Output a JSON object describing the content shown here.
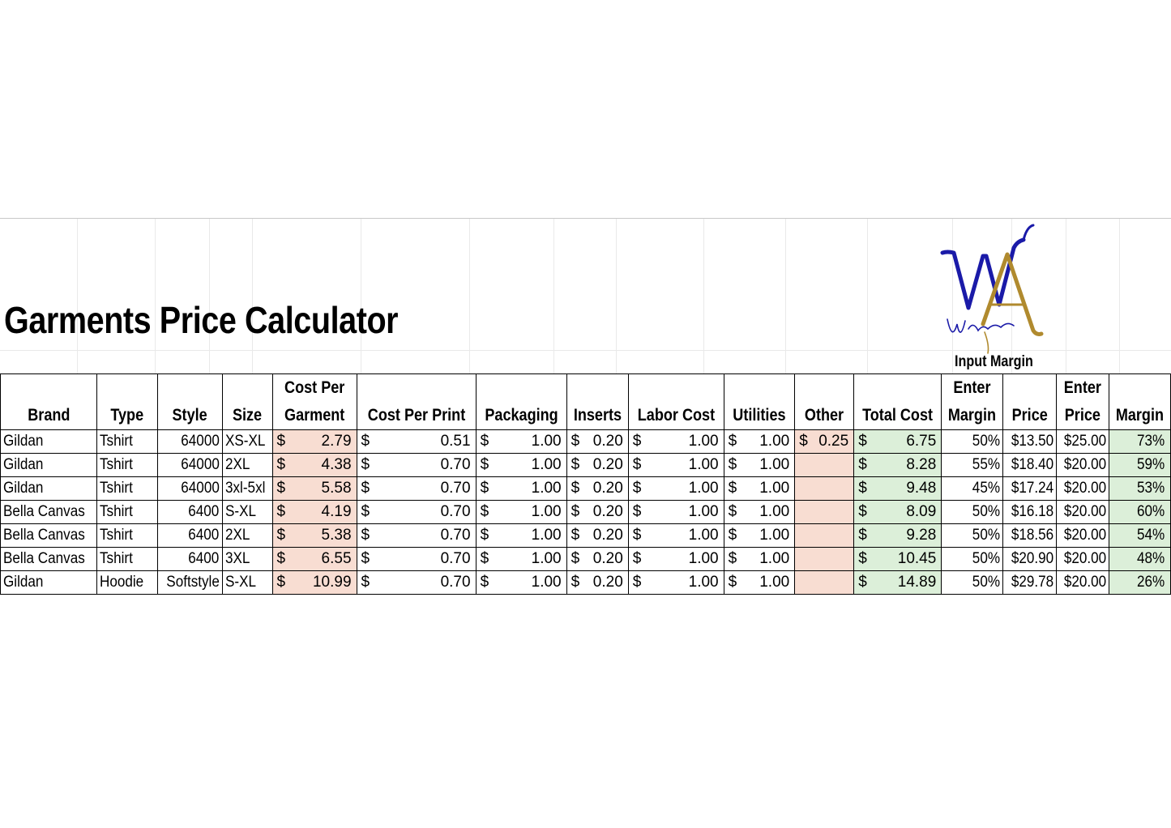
{
  "title": "Garments Price Calculator",
  "logo": {
    "monogram": "WA",
    "script": "Wintree Apparel",
    "colors": {
      "w": "#1a1aa8",
      "a": "#b08a2e"
    }
  },
  "input_margin_label": "Input Margin",
  "headers": {
    "brand": "Brand",
    "type": "Type",
    "style": "Style",
    "size": "Size",
    "cost_per_garment_1": "Cost Per",
    "cost_per_garment_2": "Garment",
    "cost_per_print": "Cost Per Print",
    "packaging": "Packaging",
    "inserts": "Inserts",
    "labor_cost": "Labor Cost",
    "utilities": "Utilities",
    "other": "Other",
    "total_cost": "Total Cost",
    "enter_margin_1": "Enter",
    "enter_margin_2": "Margin",
    "price": "Price",
    "enter_price_1": "Enter",
    "enter_price_2": "Price",
    "margin": "Margin"
  },
  "currency_symbol": "$",
  "colors": {
    "cost_fill": "#f8ddd2",
    "total_fill": "#dcefd9"
  },
  "rows": [
    {
      "brand": "Gildan",
      "type": "Tshirt",
      "style": "64000",
      "size": "XS-XL",
      "garment": "2.79",
      "print": "0.51",
      "packaging": "1.00",
      "inserts": "0.20",
      "labor": "1.00",
      "utilities": "1.00",
      "other": "0.25",
      "total": "6.75",
      "enter_margin": "50%",
      "price": "$13.50",
      "enter_price": "$25.00",
      "margin": "73%"
    },
    {
      "brand": "Gildan",
      "type": "Tshirt",
      "style": "64000",
      "size": "2XL",
      "garment": "4.38",
      "print": "0.70",
      "packaging": "1.00",
      "inserts": "0.20",
      "labor": "1.00",
      "utilities": "1.00",
      "other": "",
      "total": "8.28",
      "enter_margin": "55%",
      "price": "$18.40",
      "enter_price": "$20.00",
      "margin": "59%"
    },
    {
      "brand": "Gildan",
      "type": "Tshirt",
      "style": "64000",
      "size": "3xl-5xl",
      "garment": "5.58",
      "print": "0.70",
      "packaging": "1.00",
      "inserts": "0.20",
      "labor": "1.00",
      "utilities": "1.00",
      "other": "",
      "total": "9.48",
      "enter_margin": "45%",
      "price": "$17.24",
      "enter_price": "$20.00",
      "margin": "53%"
    },
    {
      "brand": "Bella Canvas",
      "type": "Tshirt",
      "style": "6400",
      "size": "S-XL",
      "garment": "4.19",
      "print": "0.70",
      "packaging": "1.00",
      "inserts": "0.20",
      "labor": "1.00",
      "utilities": "1.00",
      "other": "",
      "total": "8.09",
      "enter_margin": "50%",
      "price": "$16.18",
      "enter_price": "$20.00",
      "margin": "60%"
    },
    {
      "brand": "Bella Canvas",
      "type": "Tshirt",
      "style": "6400",
      "size": "2XL",
      "garment": "5.38",
      "print": "0.70",
      "packaging": "1.00",
      "inserts": "0.20",
      "labor": "1.00",
      "utilities": "1.00",
      "other": "",
      "total": "9.28",
      "enter_margin": "50%",
      "price": "$18.56",
      "enter_price": "$20.00",
      "margin": "54%"
    },
    {
      "brand": "Bella Canvas",
      "type": "Tshirt",
      "style": "6400",
      "size": "3XL",
      "garment": "6.55",
      "print": "0.70",
      "packaging": "1.00",
      "inserts": "0.20",
      "labor": "1.00",
      "utilities": "1.00",
      "other": "",
      "total": "10.45",
      "enter_margin": "50%",
      "price": "$20.90",
      "enter_price": "$20.00",
      "margin": "48%"
    },
    {
      "brand": "Gildan",
      "type": "Hoodie",
      "style": "Softstyle",
      "size": "S-XL",
      "garment": "10.99",
      "print": "0.70",
      "packaging": "1.00",
      "inserts": "0.20",
      "labor": "1.00",
      "utilities": "1.00",
      "other": "",
      "total": "14.89",
      "enter_margin": "50%",
      "price": "$29.78",
      "enter_price": "$20.00",
      "margin": "26%"
    }
  ]
}
